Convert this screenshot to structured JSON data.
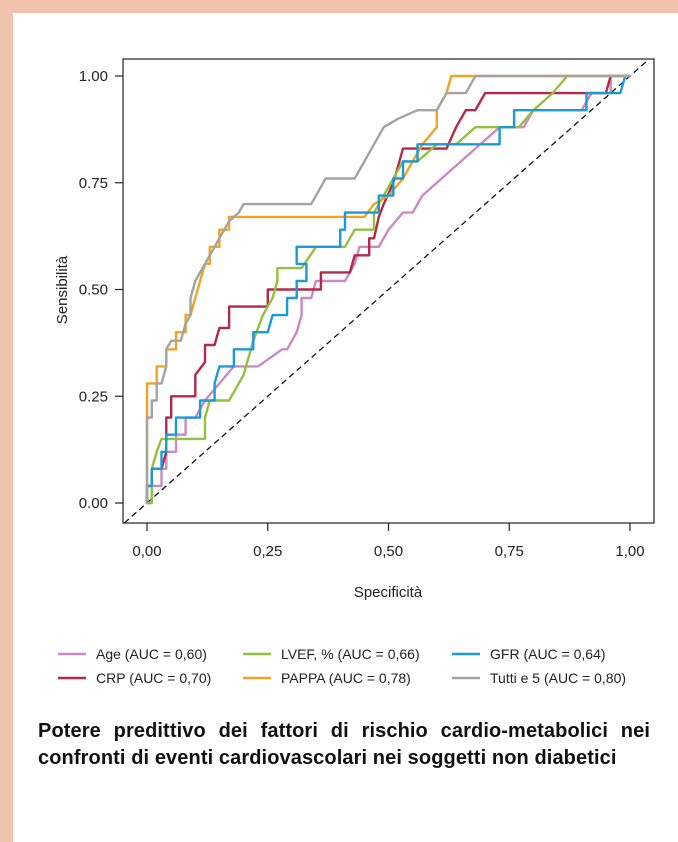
{
  "caption": "Potere predittivo dei fattori di rischio cardio-metabolici nei confronti di eventi cardiovascolari nei soggetti non diabetici",
  "chart_data": {
    "type": "line",
    "title": "",
    "xlabel": "Specificità",
    "ylabel": "Sensibilità",
    "xlim": [
      0,
      1
    ],
    "ylim": [
      0,
      1
    ],
    "x_ticks": [
      "0,00",
      "0,25",
      "0,50",
      "0,75",
      "1,00"
    ],
    "y_ticks": [
      "0.00",
      "0.25",
      "0.50",
      "0.75",
      "1.00"
    ],
    "grid": false,
    "legend_position": "bottom",
    "reference_line": {
      "style": "dashed",
      "points": [
        [
          0,
          0
        ],
        [
          1,
          1
        ]
      ]
    },
    "series": [
      {
        "name": "Age (AUC = 0,60)",
        "color": "#c98bc3",
        "points": [
          [
            0,
            0
          ],
          [
            0.01,
            0
          ],
          [
            0.01,
            0.04
          ],
          [
            0.03,
            0.04
          ],
          [
            0.03,
            0.08
          ],
          [
            0.04,
            0.08
          ],
          [
            0.04,
            0.12
          ],
          [
            0.06,
            0.12
          ],
          [
            0.06,
            0.16
          ],
          [
            0.08,
            0.16
          ],
          [
            0.08,
            0.2
          ],
          [
            0.1,
            0.2
          ],
          [
            0.12,
            0.24
          ],
          [
            0.15,
            0.28
          ],
          [
            0.18,
            0.32
          ],
          [
            0.23,
            0.32
          ],
          [
            0.28,
            0.36
          ],
          [
            0.29,
            0.36
          ],
          [
            0.31,
            0.4
          ],
          [
            0.32,
            0.44
          ],
          [
            0.32,
            0.48
          ],
          [
            0.34,
            0.48
          ],
          [
            0.35,
            0.52
          ],
          [
            0.41,
            0.52
          ],
          [
            0.43,
            0.56
          ],
          [
            0.44,
            0.6
          ],
          [
            0.48,
            0.6
          ],
          [
            0.5,
            0.64
          ],
          [
            0.53,
            0.68
          ],
          [
            0.55,
            0.68
          ],
          [
            0.57,
            0.72
          ],
          [
            0.61,
            0.76
          ],
          [
            0.65,
            0.8
          ],
          [
            0.69,
            0.84
          ],
          [
            0.73,
            0.88
          ],
          [
            0.78,
            0.88
          ],
          [
            0.8,
            0.92
          ],
          [
            0.9,
            0.92
          ],
          [
            0.92,
            0.96
          ],
          [
            0.96,
            0.96
          ],
          [
            0.96,
            1
          ],
          [
            1,
            1
          ]
        ]
      },
      {
        "name": "CRP (AUC = 0,70)",
        "color": "#b3294b",
        "points": [
          [
            0,
            0
          ],
          [
            0,
            0.04
          ],
          [
            0.01,
            0.04
          ],
          [
            0.01,
            0.08
          ],
          [
            0.03,
            0.08
          ],
          [
            0.04,
            0.12
          ],
          [
            0.04,
            0.2
          ],
          [
            0.05,
            0.2
          ],
          [
            0.05,
            0.25
          ],
          [
            0.1,
            0.25
          ],
          [
            0.1,
            0.3
          ],
          [
            0.12,
            0.33
          ],
          [
            0.12,
            0.37
          ],
          [
            0.14,
            0.37
          ],
          [
            0.15,
            0.41
          ],
          [
            0.17,
            0.41
          ],
          [
            0.17,
            0.46
          ],
          [
            0.25,
            0.46
          ],
          [
            0.25,
            0.5
          ],
          [
            0.36,
            0.5
          ],
          [
            0.36,
            0.54
          ],
          [
            0.42,
            0.54
          ],
          [
            0.43,
            0.58
          ],
          [
            0.46,
            0.58
          ],
          [
            0.46,
            0.62
          ],
          [
            0.47,
            0.62
          ],
          [
            0.48,
            0.67
          ],
          [
            0.49,
            0.7
          ],
          [
            0.51,
            0.75
          ],
          [
            0.52,
            0.79
          ],
          [
            0.53,
            0.83
          ],
          [
            0.62,
            0.83
          ],
          [
            0.64,
            0.88
          ],
          [
            0.66,
            0.92
          ],
          [
            0.68,
            0.92
          ],
          [
            0.7,
            0.96
          ],
          [
            0.9,
            0.96
          ],
          [
            0.92,
            0.96
          ],
          [
            0.95,
            0.96
          ],
          [
            0.96,
            1
          ],
          [
            1,
            1
          ]
        ]
      },
      {
        "name": "LVEF, % (AUC = 0,66)",
        "color": "#94c13d",
        "points": [
          [
            0,
            0
          ],
          [
            0.01,
            0
          ],
          [
            0.01,
            0.08
          ],
          [
            0.02,
            0.12
          ],
          [
            0.03,
            0.15
          ],
          [
            0.06,
            0.15
          ],
          [
            0.07,
            0.15
          ],
          [
            0.12,
            0.15
          ],
          [
            0.12,
            0.2
          ],
          [
            0.13,
            0.24
          ],
          [
            0.17,
            0.24
          ],
          [
            0.2,
            0.3
          ],
          [
            0.22,
            0.38
          ],
          [
            0.24,
            0.44
          ],
          [
            0.26,
            0.48
          ],
          [
            0.27,
            0.52
          ],
          [
            0.27,
            0.55
          ],
          [
            0.32,
            0.55
          ],
          [
            0.35,
            0.6
          ],
          [
            0.41,
            0.6
          ],
          [
            0.43,
            0.64
          ],
          [
            0.47,
            0.64
          ],
          [
            0.47,
            0.68
          ],
          [
            0.49,
            0.72
          ],
          [
            0.51,
            0.76
          ],
          [
            0.53,
            0.8
          ],
          [
            0.56,
            0.8
          ],
          [
            0.6,
            0.84
          ],
          [
            0.64,
            0.84
          ],
          [
            0.68,
            0.88
          ],
          [
            0.77,
            0.88
          ],
          [
            0.8,
            0.92
          ],
          [
            0.84,
            0.96
          ],
          [
            0.87,
            1
          ],
          [
            1,
            1
          ]
        ]
      },
      {
        "name": "PAPPA (AUC = 0,78)",
        "color": "#f1a324",
        "points": [
          [
            0,
            0
          ],
          [
            0,
            0.2
          ],
          [
            0,
            0.28
          ],
          [
            0.02,
            0.28
          ],
          [
            0.02,
            0.32
          ],
          [
            0.04,
            0.32
          ],
          [
            0.04,
            0.36
          ],
          [
            0.06,
            0.36
          ],
          [
            0.06,
            0.4
          ],
          [
            0.08,
            0.4
          ],
          [
            0.08,
            0.44
          ],
          [
            0.09,
            0.44
          ],
          [
            0.1,
            0.48
          ],
          [
            0.11,
            0.52
          ],
          [
            0.12,
            0.56
          ],
          [
            0.13,
            0.56
          ],
          [
            0.13,
            0.6
          ],
          [
            0.15,
            0.6
          ],
          [
            0.15,
            0.64
          ],
          [
            0.17,
            0.64
          ],
          [
            0.17,
            0.67
          ],
          [
            0.43,
            0.67
          ],
          [
            0.44,
            0.67
          ],
          [
            0.45,
            0.67
          ],
          [
            0.47,
            0.7
          ],
          [
            0.5,
            0.72
          ],
          [
            0.53,
            0.76
          ],
          [
            0.55,
            0.8
          ],
          [
            0.57,
            0.84
          ],
          [
            0.6,
            0.88
          ],
          [
            0.6,
            0.92
          ],
          [
            0.62,
            0.96
          ],
          [
            0.63,
            1
          ],
          [
            0.7,
            1
          ],
          [
            1,
            1
          ]
        ]
      },
      {
        "name": "GFR (AUC = 0,64)",
        "color": "#1b9ad6",
        "points": [
          [
            0,
            0
          ],
          [
            0,
            0.04
          ],
          [
            0.01,
            0.04
          ],
          [
            0.01,
            0.08
          ],
          [
            0.03,
            0.08
          ],
          [
            0.03,
            0.12
          ],
          [
            0.04,
            0.12
          ],
          [
            0.04,
            0.16
          ],
          [
            0.06,
            0.16
          ],
          [
            0.06,
            0.2
          ],
          [
            0.11,
            0.2
          ],
          [
            0.11,
            0.24
          ],
          [
            0.14,
            0.24
          ],
          [
            0.14,
            0.28
          ],
          [
            0.15,
            0.32
          ],
          [
            0.18,
            0.32
          ],
          [
            0.18,
            0.36
          ],
          [
            0.22,
            0.36
          ],
          [
            0.22,
            0.4
          ],
          [
            0.25,
            0.4
          ],
          [
            0.26,
            0.44
          ],
          [
            0.29,
            0.44
          ],
          [
            0.29,
            0.48
          ],
          [
            0.31,
            0.48
          ],
          [
            0.31,
            0.52
          ],
          [
            0.33,
            0.52
          ],
          [
            0.33,
            0.56
          ],
          [
            0.31,
            0.56
          ],
          [
            0.31,
            0.6
          ],
          [
            0.4,
            0.6
          ],
          [
            0.4,
            0.64
          ],
          [
            0.41,
            0.64
          ],
          [
            0.41,
            0.68
          ],
          [
            0.48,
            0.68
          ],
          [
            0.48,
            0.72
          ],
          [
            0.51,
            0.72
          ],
          [
            0.51,
            0.76
          ],
          [
            0.53,
            0.76
          ],
          [
            0.53,
            0.8
          ],
          [
            0.56,
            0.8
          ],
          [
            0.56,
            0.84
          ],
          [
            0.73,
            0.84
          ],
          [
            0.73,
            0.88
          ],
          [
            0.76,
            0.88
          ],
          [
            0.76,
            0.92
          ],
          [
            0.91,
            0.92
          ],
          [
            0.91,
            0.96
          ],
          [
            0.98,
            0.96
          ],
          [
            0.99,
            1
          ],
          [
            1,
            1
          ]
        ]
      },
      {
        "name": "Tutti e 5 (AUC = 0,80)",
        "color": "#a3a3a3",
        "points": [
          [
            0,
            0
          ],
          [
            0,
            0.2
          ],
          [
            0.01,
            0.2
          ],
          [
            0.01,
            0.24
          ],
          [
            0.02,
            0.24
          ],
          [
            0.02,
            0.28
          ],
          [
            0.03,
            0.28
          ],
          [
            0.04,
            0.32
          ],
          [
            0.04,
            0.36
          ],
          [
            0.05,
            0.38
          ],
          [
            0.07,
            0.38
          ],
          [
            0.08,
            0.42
          ],
          [
            0.09,
            0.44
          ],
          [
            0.09,
            0.48
          ],
          [
            0.1,
            0.52
          ],
          [
            0.12,
            0.56
          ],
          [
            0.13,
            0.58
          ],
          [
            0.15,
            0.62
          ],
          [
            0.17,
            0.66
          ],
          [
            0.19,
            0.68
          ],
          [
            0.2,
            0.7
          ],
          [
            0.34,
            0.7
          ],
          [
            0.35,
            0.72
          ],
          [
            0.37,
            0.76
          ],
          [
            0.43,
            0.76
          ],
          [
            0.45,
            0.8
          ],
          [
            0.47,
            0.84
          ],
          [
            0.49,
            0.88
          ],
          [
            0.52,
            0.9
          ],
          [
            0.56,
            0.92
          ],
          [
            0.6,
            0.92
          ],
          [
            0.62,
            0.96
          ],
          [
            0.66,
            0.96
          ],
          [
            0.68,
            1
          ],
          [
            1,
            1
          ]
        ]
      }
    ]
  }
}
